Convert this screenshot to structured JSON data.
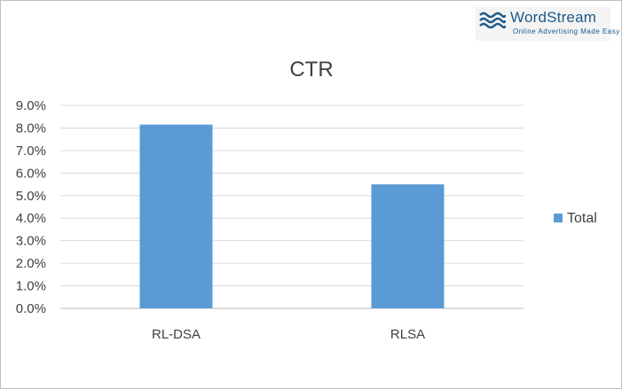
{
  "logo": {
    "name": "WordStream",
    "tagline": "Online Advertising Made Easy"
  },
  "chart_data": {
    "type": "bar",
    "title": "CTR",
    "categories": [
      "RL-DSA",
      "RLSA"
    ],
    "series": [
      {
        "name": "Total",
        "values": [
          8.15,
          5.5
        ],
        "color": "#5b9bd5"
      }
    ],
    "ylim": [
      0,
      9
    ],
    "yticks": [
      "0.0%",
      "1.0%",
      "2.0%",
      "3.0%",
      "4.0%",
      "5.0%",
      "6.0%",
      "7.0%",
      "8.0%",
      "9.0%"
    ],
    "xlabel": "",
    "ylabel": "",
    "grid": true,
    "legend_position": "right"
  }
}
